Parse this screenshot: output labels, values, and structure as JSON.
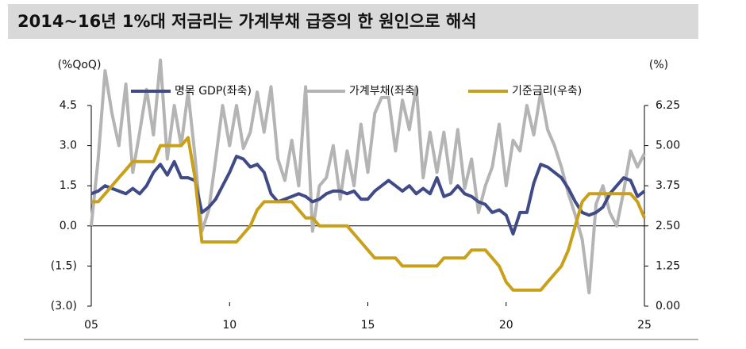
{
  "chart_data": {
    "type": "line",
    "title": "2014~16년 1%대 저금리는 가계부채 급증의 한 원인으로 해석",
    "y_label": "(%QoQ)",
    "y2_label": "(%)",
    "x": [
      5,
      5.25,
      5.5,
      5.75,
      6,
      6.25,
      6.5,
      6.75,
      7,
      7.25,
      7.5,
      7.75,
      8,
      8.25,
      8.5,
      8.75,
      9,
      9.25,
      9.5,
      9.75,
      10,
      10.25,
      10.5,
      10.75,
      11,
      11.25,
      11.5,
      11.75,
      12,
      12.25,
      12.5,
      12.75,
      13,
      13.25,
      13.5,
      13.75,
      14,
      14.25,
      14.5,
      14.75,
      15,
      15.25,
      15.5,
      15.75,
      16,
      16.25,
      16.5,
      16.75,
      17,
      17.25,
      17.5,
      17.75,
      18,
      18.25,
      18.5,
      18.75,
      19,
      19.25,
      19.5,
      19.75,
      20,
      20.25,
      20.5,
      20.75,
      21,
      21.25,
      21.5,
      21.75,
      22,
      22.25,
      22.5,
      22.75,
      23,
      23.25,
      23.5,
      23.75,
      24,
      24.25,
      24.5,
      24.75,
      25
    ],
    "xlim": [
      5,
      25
    ],
    "xticks": [
      {
        "value": 5,
        "label": "05"
      },
      10,
      15,
      20,
      25
    ],
    "ylim": [
      -3,
      4.5
    ],
    "yticks": [
      4.5,
      {
        "value": 3,
        "label": "3.0"
      },
      1.5,
      {
        "value": 0,
        "label": "0.0"
      },
      {
        "value": -1.5,
        "label": "(1.5)"
      },
      {
        "value": -3,
        "label": "(3.0)"
      }
    ],
    "y2lim": [
      0,
      6.25
    ],
    "y2ticks": [
      6.25,
      {
        "value": 5,
        "label": "5.00"
      },
      3.75,
      {
        "value": 2.5,
        "label": "2.50"
      },
      1.25,
      {
        "value": 0,
        "label": "0.00"
      }
    ],
    "series": [
      {
        "name": "명목 GDP(좌축)",
        "color": "#3f4a86",
        "values": [
          1.2,
          1.3,
          1.5,
          1.4,
          1.3,
          1.2,
          1.4,
          1.2,
          1.5,
          2.0,
          2.3,
          1.9,
          2.4,
          1.8,
          1.8,
          1.7,
          0.5,
          0.7,
          1.0,
          1.5,
          2.0,
          2.6,
          2.5,
          2.2,
          2.3,
          2.0,
          1.2,
          0.9,
          1.0,
          1.1,
          1.2,
          1.1,
          0.9,
          1.0,
          1.2,
          1.3,
          1.3,
          1.2,
          1.3,
          1.0,
          1.0,
          1.3,
          1.5,
          1.7,
          1.5,
          1.3,
          1.5,
          1.2,
          1.4,
          1.2,
          1.8,
          1.1,
          1.2,
          1.5,
          1.2,
          1.1,
          0.9,
          0.8,
          0.5,
          0.6,
          0.4,
          -0.3,
          0.5,
          0.5,
          1.6,
          2.3,
          2.2,
          2.0,
          1.8,
          1.4,
          0.9,
          0.5,
          0.4,
          0.5,
          0.7,
          1.2,
          1.5,
          1.8,
          1.7,
          1.1,
          1.3
        ]
      },
      {
        "name": "가계부채(좌축)",
        "color": "#b4b4b4",
        "values": [
          0.0,
          2.5,
          5.8,
          4.2,
          3.0,
          5.3,
          2.0,
          3.5,
          5.1,
          3.4,
          6.2,
          2.5,
          4.5,
          3.0,
          5.0,
          2.6,
          -0.2,
          0.6,
          2.5,
          4.5,
          3.0,
          4.5,
          2.9,
          3.5,
          5.0,
          3.5,
          5.2,
          2.5,
          1.7,
          3.2,
          1.5,
          5.2,
          -0.2,
          1.5,
          1.8,
          3.0,
          1.0,
          2.8,
          1.5,
          3.8,
          2.0,
          4.2,
          4.8,
          4.8,
          2.8,
          4.7,
          3.6,
          5.2,
          1.8,
          3.5,
          2.0,
          3.5,
          1.6,
          3.6,
          1.4,
          2.5,
          0.5,
          1.5,
          2.2,
          3.8,
          1.5,
          3.2,
          2.8,
          4.5,
          3.4,
          5.0,
          3.6,
          3.0,
          2.2,
          1.2,
          0.4,
          -0.5,
          -2.5,
          0.8,
          1.5,
          0.5,
          0.0,
          1.3,
          2.8,
          2.2,
          2.7
        ]
      },
      {
        "name": "기준금리(우축)",
        "color": "#c9a01a",
        "axis": "y2",
        "values": [
          3.25,
          3.25,
          3.5,
          3.75,
          4.0,
          4.25,
          4.5,
          4.5,
          4.5,
          4.5,
          5.0,
          5.0,
          5.0,
          5.0,
          5.25,
          4.0,
          2.0,
          2.0,
          2.0,
          2.0,
          2.0,
          2.0,
          2.25,
          2.5,
          3.0,
          3.25,
          3.25,
          3.25,
          3.25,
          3.25,
          3.0,
          2.75,
          2.75,
          2.5,
          2.5,
          2.5,
          2.5,
          2.5,
          2.25,
          2.0,
          1.75,
          1.5,
          1.5,
          1.5,
          1.5,
          1.25,
          1.25,
          1.25,
          1.25,
          1.25,
          1.25,
          1.5,
          1.5,
          1.5,
          1.5,
          1.75,
          1.75,
          1.75,
          1.5,
          1.25,
          0.75,
          0.5,
          0.5,
          0.5,
          0.5,
          0.5,
          0.75,
          1.0,
          1.25,
          1.75,
          2.5,
          3.25,
          3.5,
          3.5,
          3.5,
          3.5,
          3.5,
          3.5,
          3.5,
          3.25,
          2.75
        ]
      }
    ]
  }
}
